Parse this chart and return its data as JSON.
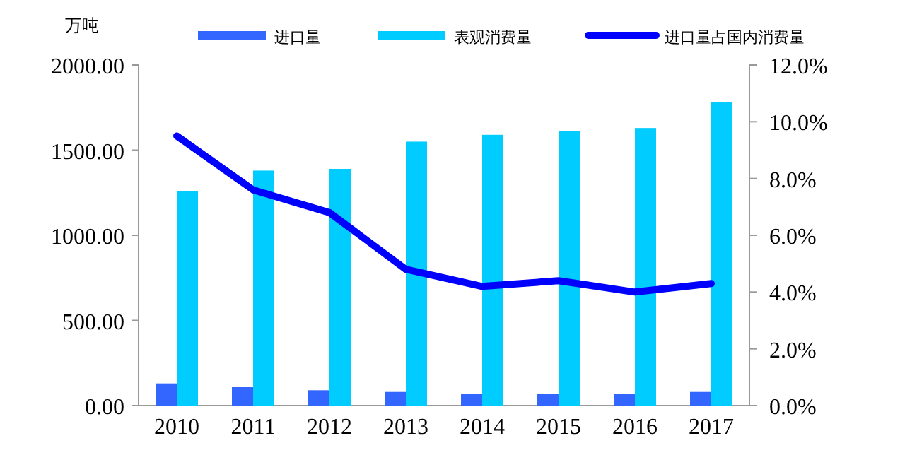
{
  "chart_data": {
    "type": "bar",
    "ylabel": "万吨",
    "categories": [
      "2010",
      "2011",
      "2012",
      "2013",
      "2014",
      "2015",
      "2016",
      "2017"
    ],
    "series": [
      {
        "name": "进口量",
        "color": "#3366ff",
        "values": [
          130,
          110,
          90,
          80,
          70,
          70,
          70,
          80
        ]
      },
      {
        "name": "表观消费量",
        "color": "#00ccff",
        "values": [
          1260,
          1380,
          1390,
          1550,
          1590,
          1610,
          1630,
          1780
        ]
      },
      {
        "name": "进口量占国内消费量",
        "type": "line",
        "axis": "y2",
        "color": "#0000ff",
        "values": [
          9.5,
          7.6,
          6.8,
          4.8,
          4.2,
          4.4,
          4.0,
          4.3
        ]
      }
    ],
    "ylim": [
      0,
      2000
    ],
    "yticks": [
      {
        "value": 0,
        "label": "0.00"
      },
      {
        "value": 500,
        "label": "500.00"
      },
      {
        "value": 1000,
        "label": "1000.00"
      },
      {
        "value": 1500,
        "label": "1500.00"
      },
      {
        "value": 2000,
        "label": "2000.00"
      }
    ],
    "y2lim": [
      0,
      12
    ],
    "y2ticks": [
      {
        "value": 0,
        "label": "0.0%"
      },
      {
        "value": 2,
        "label": "2.0%"
      },
      {
        "value": 4,
        "label": "4.0%"
      },
      {
        "value": 6,
        "label": "6.0%"
      },
      {
        "value": 8,
        "label": "8.0%"
      },
      {
        "value": 10,
        "label": "10.0%"
      },
      {
        "value": 12,
        "label": "12.0%"
      }
    ],
    "grid": false,
    "legend": "top"
  }
}
